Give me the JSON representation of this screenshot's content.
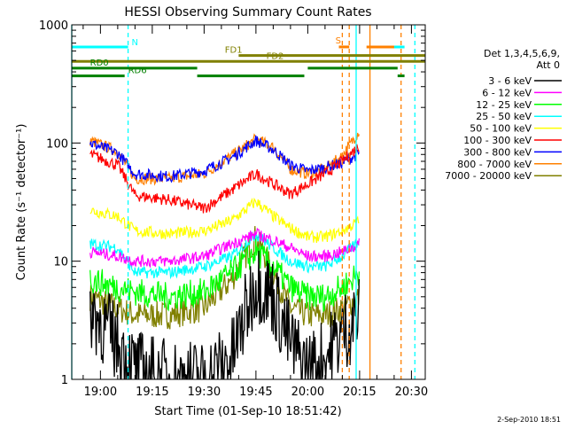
{
  "chart_data": {
    "type": "line",
    "title": "HESSI Observing Summary Count Rates",
    "xlabel": "Start Time (01-Sep-10 18:51:42)",
    "ylabel": "Count Rate (s⁻¹ detector⁻¹)",
    "y_scale": "log",
    "ylim": [
      1,
      1000
    ],
    "xlim": [
      "18:51:42",
      "20:34:00"
    ],
    "x_ticks": [
      "19:00",
      "19:15",
      "19:30",
      "19:45",
      "20:00",
      "20:15",
      "20:30"
    ],
    "y_ticks": [
      "1",
      "10",
      "100",
      "1000"
    ],
    "timestamp": "2-Sep-2010 18:51",
    "legend": {
      "placement": "right",
      "title_lines": [
        "Det 1,3,4,5,6,9,",
        "Att 0"
      ]
    },
    "series": [
      {
        "name": "3 - 6 keV",
        "color": "#000000",
        "x": [
          "18:57",
          "19:05",
          "19:10",
          "19:20",
          "19:30",
          "19:38",
          "19:45",
          "19:50",
          "19:55",
          "20:00",
          "20:05",
          "20:10",
          "20:15"
        ],
        "values": [
          4.0,
          2.0,
          1.2,
          1.0,
          1.0,
          1.5,
          7.0,
          5.0,
          2.0,
          1.2,
          1.5,
          2.5,
          3.5
        ]
      },
      {
        "name": "6 - 12 keV",
        "color": "#ff00ff",
        "x": [
          "18:57",
          "19:05",
          "19:10",
          "19:20",
          "19:30",
          "19:38",
          "19:45",
          "19:50",
          "19:55",
          "20:00",
          "20:05",
          "20:10",
          "20:15"
        ],
        "values": [
          12,
          11,
          10,
          10,
          11,
          14,
          17,
          15,
          13,
          11,
          11,
          12,
          14
        ]
      },
      {
        "name": "12 - 25 keV",
        "color": "#00ff00",
        "x": [
          "18:57",
          "19:05",
          "19:10",
          "19:20",
          "19:30",
          "19:38",
          "19:45",
          "19:50",
          "19:55",
          "20:00",
          "20:05",
          "20:10",
          "20:15"
        ],
        "values": [
          7,
          6,
          5.5,
          5,
          5.5,
          8,
          12,
          9,
          6,
          5,
          5,
          6,
          8
        ]
      },
      {
        "name": "25 - 50 keV",
        "color": "#00ffff",
        "x": [
          "18:57",
          "19:05",
          "19:10",
          "19:20",
          "19:30",
          "19:38",
          "19:45",
          "19:50",
          "19:55",
          "20:00",
          "20:05",
          "20:10",
          "20:15"
        ],
        "values": [
          14,
          13,
          8,
          8,
          9,
          11,
          17,
          13,
          10,
          9,
          9,
          11,
          15
        ]
      },
      {
        "name": "50 - 100 keV",
        "color": "#ffff00",
        "x": [
          "18:57",
          "19:05",
          "19:10",
          "19:20",
          "19:30",
          "19:38",
          "19:45",
          "19:50",
          "19:55",
          "20:00",
          "20:05",
          "20:10",
          "20:15"
        ],
        "values": [
          27,
          24,
          18,
          17,
          18,
          22,
          32,
          24,
          19,
          16,
          16,
          18,
          22
        ]
      },
      {
        "name": "100 - 300 keV",
        "color": "#ff0000",
        "x": [
          "18:57",
          "19:05",
          "19:10",
          "19:20",
          "19:30",
          "19:38",
          "19:45",
          "19:50",
          "19:55",
          "20:00",
          "20:05",
          "20:10",
          "20:15"
        ],
        "values": [
          80,
          65,
          36,
          33,
          28,
          40,
          55,
          45,
          37,
          45,
          55,
          70,
          95
        ]
      },
      {
        "name": "300 - 800 keV",
        "color": "#0000ff",
        "x": [
          "18:57",
          "19:05",
          "19:10",
          "19:20",
          "19:30",
          "19:38",
          "19:45",
          "19:50",
          "19:55",
          "20:00",
          "20:05",
          "20:10",
          "20:15"
        ],
        "values": [
          100,
          82,
          55,
          52,
          58,
          75,
          105,
          88,
          65,
          58,
          62,
          68,
          82
        ]
      },
      {
        "name": "800 - 7000 keV",
        "color": "#ff8000",
        "x": [
          "18:57",
          "19:05",
          "19:10",
          "19:20",
          "19:30",
          "19:38",
          "19:45",
          "19:50",
          "19:55",
          "20:00",
          "20:05",
          "20:10",
          "20:15"
        ],
        "values": [
          105,
          85,
          50,
          50,
          55,
          78,
          108,
          92,
          60,
          55,
          60,
          78,
          128
        ]
      },
      {
        "name": "7000 - 20000 keV",
        "color": "#808000",
        "x": [
          "18:57",
          "19:05",
          "19:10",
          "19:20",
          "19:30",
          "19:38",
          "19:45",
          "19:50",
          "19:55",
          "20:00",
          "20:05",
          "20:10",
          "20:15"
        ],
        "values": [
          5,
          4,
          3.5,
          3.5,
          4,
          7,
          16,
          8,
          4,
          3.5,
          3.5,
          4,
          5
        ]
      }
    ],
    "flag_bars": [
      {
        "label": "N",
        "color": "#00ffff",
        "y": 650,
        "segments": [
          [
            "18:51:42",
            "19:08"
          ],
          [
            "20:18",
            "20:28"
          ]
        ]
      },
      {
        "label": "S",
        "color": "#ff8000",
        "y": 650,
        "segments": [
          [
            "20:09",
            "20:12"
          ],
          [
            "20:17",
            "20:25"
          ]
        ]
      },
      {
        "label": "FD1",
        "color": "#808000",
        "y": 550,
        "segments": [
          [
            "19:40",
            "20:34"
          ]
        ]
      },
      {
        "label": "FD2",
        "color": "#808000",
        "y": 490,
        "segments": [
          [
            "18:51:42",
            "20:34"
          ]
        ]
      },
      {
        "label": "RD0",
        "color": "#008000",
        "y": 430,
        "segments": [
          [
            "18:51:42",
            "19:28"
          ],
          [
            "20:00",
            "20:26"
          ]
        ]
      },
      {
        "label": "RD6",
        "color": "#008000",
        "y": 370,
        "segments": [
          [
            "18:51:42",
            "19:07"
          ],
          [
            "19:28",
            "19:59"
          ],
          [
            "20:26",
            "20:28"
          ]
        ]
      }
    ],
    "vertical_markers": [
      {
        "color": "#00ffff",
        "style": "dashed",
        "time": "19:08"
      },
      {
        "color": "#00ffff",
        "style": "dashed",
        "time": "20:31"
      },
      {
        "color": "#ff8000",
        "style": "dashed",
        "time": "20:10"
      },
      {
        "color": "#ff8000",
        "style": "dashed",
        "time": "20:12"
      },
      {
        "color": "#ff8000",
        "style": "dashed",
        "time": "20:27"
      },
      {
        "color": "#00ffff",
        "style": "solid",
        "time": "20:14"
      },
      {
        "color": "#ff8000",
        "style": "solid",
        "time": "20:18"
      },
      {
        "color": "#00ffff",
        "style": "solid",
        "time": "18:51:42"
      }
    ]
  }
}
